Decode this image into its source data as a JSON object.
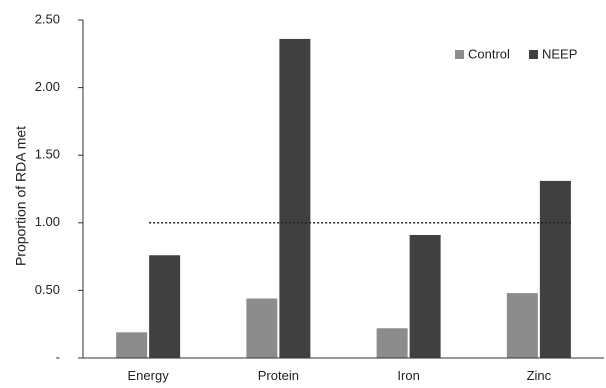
{
  "chart_data": {
    "type": "bar",
    "categories": [
      "Energy",
      "Protein",
      "Iron",
      "Zinc"
    ],
    "series": [
      {
        "name": "Control",
        "values": [
          0.19,
          0.44,
          0.22,
          0.48
        ],
        "color": "#8c8c8c"
      },
      {
        "name": "NEEP",
        "values": [
          0.76,
          2.36,
          0.91,
          1.31
        ],
        "color": "#404040"
      }
    ],
    "title": "",
    "xlabel": "",
    "ylabel": "Proportion of RDA met",
    "ylim": [
      0,
      2.5
    ],
    "yticks": [
      0,
      0.5,
      1.0,
      1.5,
      2.0,
      2.5
    ],
    "ytick_labels": [
      "-",
      "0.50",
      "1.00",
      "1.50",
      "2.00",
      "2.50"
    ],
    "reference_line": {
      "value": 1.0,
      "style": "dotted"
    },
    "legend_position": "top-right",
    "grid": false
  }
}
